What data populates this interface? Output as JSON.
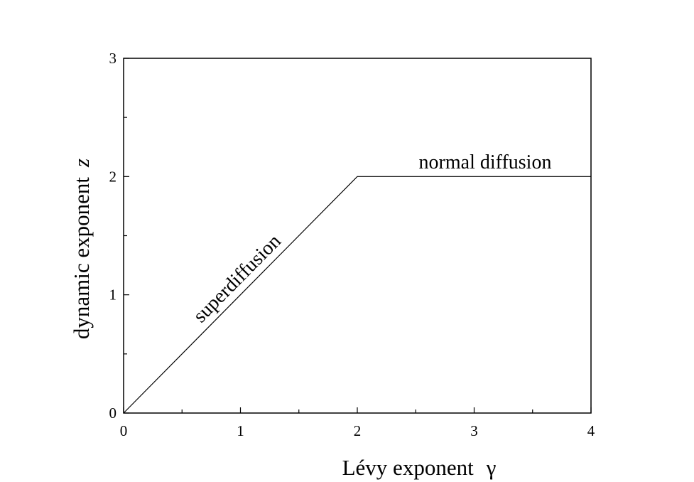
{
  "chart_data": {
    "type": "line",
    "xlabel": "Lévy exponent",
    "xsymbol": "γ",
    "ylabel": "dynamic exponent",
    "ysymbol": "z",
    "annotations": [
      "superdiffusion",
      "normal diffusion"
    ],
    "x": [
      0,
      2,
      4
    ],
    "values": [
      0,
      2,
      2
    ],
    "color": "#000000",
    "xlim": [
      0,
      4
    ],
    "ylim": [
      0,
      3
    ],
    "xticks": [
      0,
      1,
      2,
      3,
      4
    ],
    "yticks": [
      0,
      1,
      2,
      3
    ],
    "xminorticks": [
      0.5,
      1.5,
      2.5,
      3.5
    ],
    "yminorticks": [
      0.5,
      1.5,
      2.5
    ],
    "grid": false
  }
}
